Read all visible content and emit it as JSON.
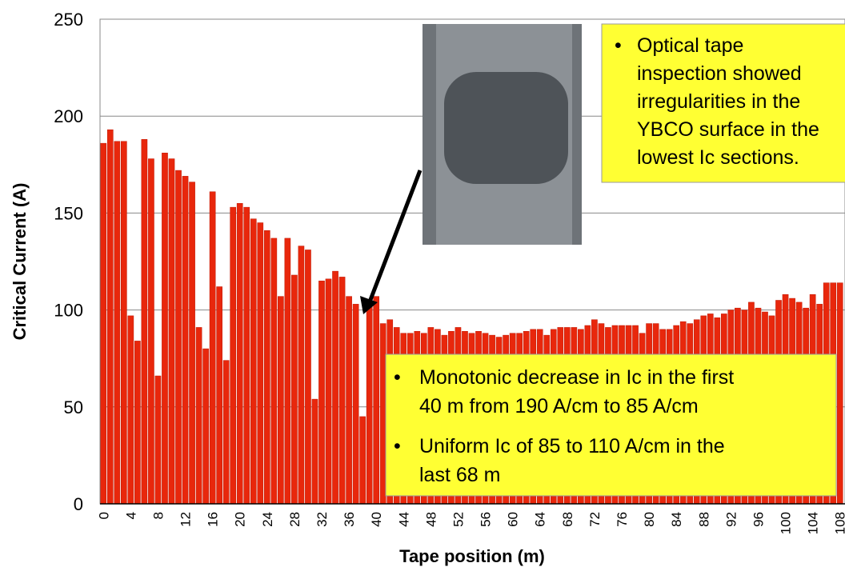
{
  "chart_data": {
    "type": "bar",
    "x_label": "Tape position (m)",
    "y_label": "Critical Current (A)",
    "categories": [
      "0",
      null,
      null,
      null,
      "4",
      null,
      null,
      null,
      "8",
      null,
      null,
      null,
      "12",
      null,
      null,
      null,
      "16",
      null,
      null,
      null,
      "20",
      null,
      null,
      null,
      "24",
      null,
      null,
      null,
      "28",
      null,
      null,
      null,
      "32",
      null,
      null,
      null,
      "36",
      null,
      null,
      null,
      "40",
      null,
      null,
      null,
      "44",
      null,
      null,
      null,
      "48",
      null,
      null,
      null,
      "52",
      null,
      null,
      null,
      "56",
      null,
      null,
      null,
      "60",
      null,
      null,
      null,
      "64",
      null,
      null,
      null,
      "68",
      null,
      null,
      null,
      "72",
      null,
      null,
      null,
      "76",
      null,
      null,
      null,
      "80",
      null,
      null,
      null,
      "84",
      null,
      null,
      null,
      "88",
      null,
      null,
      null,
      "92",
      null,
      null,
      null,
      "96",
      null,
      null,
      null,
      "100",
      null,
      null,
      null,
      "104",
      null,
      null,
      null,
      "108"
    ],
    "values": [
      186,
      193,
      187,
      187,
      97,
      84,
      188,
      178,
      66,
      181,
      178,
      172,
      169,
      166,
      91,
      80,
      161,
      112,
      74,
      153,
      155,
      153,
      147,
      145,
      141,
      137,
      107,
      137,
      118,
      133,
      131,
      54,
      115,
      116,
      120,
      117,
      107,
      103,
      45,
      105,
      107,
      93,
      95,
      91,
      88,
      88,
      89,
      88,
      91,
      90,
      87,
      89,
      91,
      89,
      88,
      89,
      88,
      87,
      86,
      87,
      88,
      88,
      89,
      90,
      90,
      87,
      90,
      91,
      91,
      91,
      90,
      92,
      95,
      93,
      91,
      92,
      92,
      92,
      92,
      88,
      93,
      93,
      90,
      90,
      92,
      94,
      93,
      95,
      97,
      98,
      96,
      98,
      100,
      101,
      100,
      104,
      101,
      99,
      97,
      105,
      108,
      106,
      104,
      101,
      108,
      103,
      114,
      114,
      114
    ],
    "color": "#e8270c",
    "ylim": [
      0,
      250
    ],
    "yticks": [
      0,
      50,
      100,
      150,
      200,
      250
    ],
    "grid": true,
    "annotations": [
      {
        "bullets": [
          [
            "Optical tape",
            "inspection showed",
            "irregularities in the",
            "YBCO surface in the",
            "lowest Ic sections."
          ]
        ]
      },
      {
        "bullets": [
          [
            "Monotonic decrease in Ic in the first",
            "40 m from 190 A/cm to 85 A/cm"
          ],
          [
            "Uniform Ic of 85 to 110 A/cm in the",
            "last 68 m"
          ]
        ]
      }
    ]
  }
}
